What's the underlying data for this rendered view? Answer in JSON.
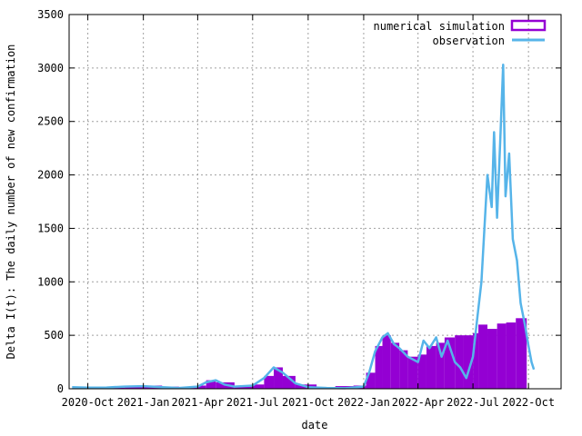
{
  "chart_data": {
    "type": "bar",
    "xlabel": "date",
    "ylabel": "Delta I(t): The daily number of new confirmation",
    "ylim": [
      0,
      3500
    ],
    "y_ticks": [
      0,
      500,
      1000,
      1500,
      2000,
      2500,
      3000,
      3500
    ],
    "x_tick_labels": [
      "2020-Oct",
      "2021-Jan",
      "2021-Apr",
      "2021-Jul",
      "2021-Oct",
      "2022-Jan",
      "2022-Apr",
      "2022-Jul",
      "2022-Oct"
    ],
    "grid": true,
    "legend_position": "top-right",
    "series": [
      {
        "name": "numerical simulation",
        "style": "filled bars",
        "color": "#9400d3",
        "points": [
          {
            "x": "2020-10-01",
            "y": 8
          },
          {
            "x": "2020-11-01",
            "y": 10
          },
          {
            "x": "2020-12-01",
            "y": 25
          },
          {
            "x": "2021-01-01",
            "y": 30
          },
          {
            "x": "2021-02-01",
            "y": 20
          },
          {
            "x": "2021-03-01",
            "y": 15
          },
          {
            "x": "2021-04-01",
            "y": 30
          },
          {
            "x": "2021-04-15",
            "y": 80
          },
          {
            "x": "2021-05-01",
            "y": 60
          },
          {
            "x": "2021-06-01",
            "y": 20
          },
          {
            "x": "2021-07-01",
            "y": 40
          },
          {
            "x": "2021-07-20",
            "y": 120
          },
          {
            "x": "2021-08-05",
            "y": 200
          },
          {
            "x": "2021-08-20",
            "y": 120
          },
          {
            "x": "2021-09-10",
            "y": 40
          },
          {
            "x": "2021-10-15",
            "y": 15
          },
          {
            "x": "2021-11-15",
            "y": 25
          },
          {
            "x": "2021-12-15",
            "y": 30
          },
          {
            "x": "2022-01-05",
            "y": 150
          },
          {
            "x": "2022-01-20",
            "y": 400
          },
          {
            "x": "2022-02-01",
            "y": 500
          },
          {
            "x": "2022-02-15",
            "y": 430
          },
          {
            "x": "2022-03-01",
            "y": 360
          },
          {
            "x": "2022-03-15",
            "y": 300
          },
          {
            "x": "2022-04-01",
            "y": 320
          },
          {
            "x": "2022-04-15",
            "y": 400
          },
          {
            "x": "2022-05-01",
            "y": 430
          },
          {
            "x": "2022-05-15",
            "y": 480
          },
          {
            "x": "2022-06-01",
            "y": 500
          },
          {
            "x": "2022-06-15",
            "y": 500
          },
          {
            "x": "2022-07-01",
            "y": 520
          },
          {
            "x": "2022-07-10",
            "y": 600
          },
          {
            "x": "2022-07-25",
            "y": 560
          },
          {
            "x": "2022-08-10",
            "y": 610
          },
          {
            "x": "2022-08-25",
            "y": 620
          },
          {
            "x": "2022-09-10",
            "y": 660
          }
        ]
      },
      {
        "name": "observation",
        "style": "line",
        "color": "#56b4e9",
        "points": [
          {
            "x": "2020-09-05",
            "y": 15
          },
          {
            "x": "2020-10-01",
            "y": 10
          },
          {
            "x": "2020-11-01",
            "y": 12
          },
          {
            "x": "2020-12-01",
            "y": 20
          },
          {
            "x": "2021-01-01",
            "y": 25
          },
          {
            "x": "2021-02-01",
            "y": 15
          },
          {
            "x": "2021-03-01",
            "y": 8
          },
          {
            "x": "2021-04-01",
            "y": 20
          },
          {
            "x": "2021-04-15",
            "y": 60
          },
          {
            "x": "2021-05-01",
            "y": 80
          },
          {
            "x": "2021-05-15",
            "y": 40
          },
          {
            "x": "2021-06-01",
            "y": 20
          },
          {
            "x": "2021-07-01",
            "y": 30
          },
          {
            "x": "2021-07-20",
            "y": 100
          },
          {
            "x": "2021-08-05",
            "y": 200
          },
          {
            "x": "2021-08-20",
            "y": 150
          },
          {
            "x": "2021-09-10",
            "y": 50
          },
          {
            "x": "2021-10-01",
            "y": 15
          },
          {
            "x": "2021-11-01",
            "y": 8
          },
          {
            "x": "2021-12-01",
            "y": 5
          },
          {
            "x": "2022-01-01",
            "y": 20
          },
          {
            "x": "2022-01-10",
            "y": 150
          },
          {
            "x": "2022-01-20",
            "y": 350
          },
          {
            "x": "2022-02-01",
            "y": 480
          },
          {
            "x": "2022-02-10",
            "y": 520
          },
          {
            "x": "2022-02-20",
            "y": 420
          },
          {
            "x": "2022-03-01",
            "y": 380
          },
          {
            "x": "2022-03-15",
            "y": 300
          },
          {
            "x": "2022-04-01",
            "y": 250
          },
          {
            "x": "2022-04-10",
            "y": 450
          },
          {
            "x": "2022-04-20",
            "y": 380
          },
          {
            "x": "2022-05-01",
            "y": 480
          },
          {
            "x": "2022-05-10",
            "y": 300
          },
          {
            "x": "2022-05-20",
            "y": 450
          },
          {
            "x": "2022-06-01",
            "y": 250
          },
          {
            "x": "2022-06-10",
            "y": 200
          },
          {
            "x": "2022-06-20",
            "y": 100
          },
          {
            "x": "2022-07-01",
            "y": 300
          },
          {
            "x": "2022-07-08",
            "y": 650
          },
          {
            "x": "2022-07-15",
            "y": 1000
          },
          {
            "x": "2022-07-20",
            "y": 1500
          },
          {
            "x": "2022-07-25",
            "y": 2000
          },
          {
            "x": "2022-08-01",
            "y": 1700
          },
          {
            "x": "2022-08-05",
            "y": 2400
          },
          {
            "x": "2022-08-10",
            "y": 1600
          },
          {
            "x": "2022-08-15",
            "y": 2300
          },
          {
            "x": "2022-08-20",
            "y": 3030
          },
          {
            "x": "2022-08-24",
            "y": 1800
          },
          {
            "x": "2022-08-30",
            "y": 2200
          },
          {
            "x": "2022-09-05",
            "y": 1400
          },
          {
            "x": "2022-09-12",
            "y": 1200
          },
          {
            "x": "2022-09-18",
            "y": 800
          },
          {
            "x": "2022-09-25",
            "y": 600
          },
          {
            "x": "2022-10-01",
            "y": 400
          },
          {
            "x": "2022-10-06",
            "y": 250
          },
          {
            "x": "2022-10-10",
            "y": 180
          }
        ]
      }
    ]
  }
}
